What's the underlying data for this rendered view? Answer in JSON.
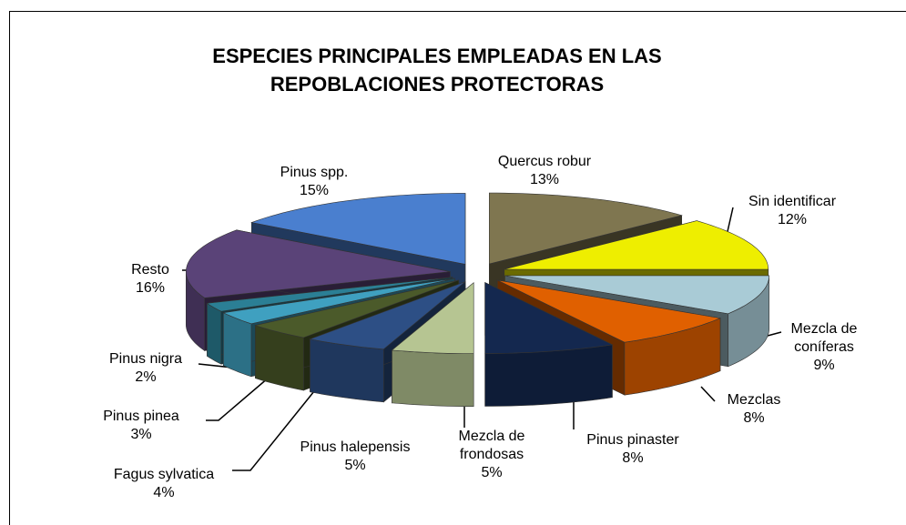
{
  "chart_data": {
    "type": "pie",
    "title": "ESPECIES PRINCIPALES EMPLEADAS EN LAS REPOBLACIONES PROTECTORAS",
    "categories": [
      "Quercus robur",
      "Sin identificar",
      "Mezcla de coníferas",
      "Mezclas",
      "Pinus pinaster",
      "Mezcla de frondosas",
      "Pinus halepensis",
      "Fagus sylvatica",
      "Pinus pinea",
      "Pinus nigra",
      "Resto",
      "Pinus spp."
    ],
    "values": [
      13,
      12,
      9,
      8,
      8,
      5,
      5,
      4,
      3,
      2,
      16,
      15
    ],
    "value_labels": [
      "13%",
      "12%",
      "9%",
      "8%",
      "8%",
      "5%",
      "5%",
      "4%",
      "3%",
      "2%",
      "16%",
      "15%"
    ],
    "colors": [
      "#7f7650",
      "#eeee00",
      "#a9cbd6",
      "#e06000",
      "#14284f",
      "#b6c592",
      "#2d4f85",
      "#4b5a2a",
      "#3fa0c0",
      "#2b7f95",
      "#5a4378",
      "#4a7fcf"
    ]
  }
}
